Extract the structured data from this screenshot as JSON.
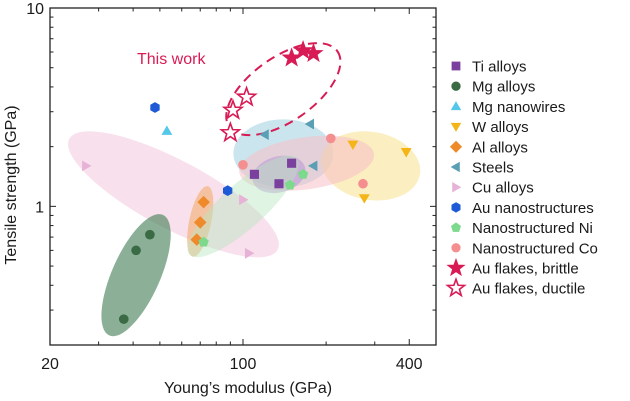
{
  "chart_data": {
    "type": "scatter",
    "x_scale": "log",
    "y_scale": "log",
    "xlabel": "Young’s modulus (GPa)",
    "ylabel": "Tensile strength (GPa)",
    "xlim": [
      20,
      500
    ],
    "ylim": [
      0.2,
      10
    ],
    "x_tick_labels": [
      {
        "value": 20,
        "label": "20"
      },
      {
        "value": 100,
        "label": "100"
      },
      {
        "value": 400,
        "label": "400"
      }
    ],
    "y_tick_labels": [
      {
        "value": 1,
        "label": "1"
      },
      {
        "value": 10,
        "label": "10"
      }
    ],
    "annotation": {
      "text": "This work",
      "color": "#d81b55"
    },
    "legend_position": "right",
    "series": [
      {
        "name": "Ti alloys",
        "marker": "square",
        "filled": true,
        "color": "#7b3f9e",
        "points": [
          [
            110,
            1.45
          ],
          [
            135,
            1.3
          ],
          [
            150,
            1.65
          ]
        ]
      },
      {
        "name": "Mg alloys",
        "marker": "circle",
        "filled": true,
        "color": "#3a6b45",
        "points": [
          [
            37,
            0.27
          ],
          [
            41,
            0.6
          ],
          [
            46,
            0.72
          ]
        ]
      },
      {
        "name": "Mg nanowires",
        "marker": "triangle-up",
        "filled": true,
        "color": "#55c8ea",
        "points": [
          [
            53,
            2.4
          ]
        ]
      },
      {
        "name": "W alloys",
        "marker": "triangle-down",
        "filled": true,
        "color": "#f3b517",
        "points": [
          [
            250,
            2.05
          ],
          [
            275,
            1.1
          ],
          [
            390,
            1.88
          ]
        ]
      },
      {
        "name": "Al alloys",
        "marker": "diamond",
        "filled": true,
        "color": "#ee8a2a",
        "points": [
          [
            68,
            0.68
          ],
          [
            70,
            0.83
          ],
          [
            72,
            1.05
          ]
        ]
      },
      {
        "name": "Steels",
        "marker": "triangle-left",
        "filled": true,
        "color": "#5a9fb4",
        "points": [
          [
            120,
            2.3
          ],
          [
            175,
            2.6
          ],
          [
            180,
            1.6
          ]
        ]
      },
      {
        "name": "Cu alloys",
        "marker": "triangle-right",
        "filled": true,
        "color": "#e6b3d6",
        "points": [
          [
            27,
            1.6
          ],
          [
            100,
            1.08
          ],
          [
            105,
            0.58
          ]
        ]
      },
      {
        "name": "Au nanostructures",
        "marker": "hexagon",
        "filled": true,
        "color": "#1f5ad6",
        "points": [
          [
            48,
            3.15
          ],
          [
            88,
            1.2
          ]
        ]
      },
      {
        "name": "Nanostructured Ni",
        "marker": "pentagon",
        "filled": true,
        "color": "#7dd98c",
        "points": [
          [
            72,
            0.66
          ],
          [
            148,
            1.28
          ],
          [
            165,
            1.45
          ]
        ]
      },
      {
        "name": "Nanostructured Co",
        "marker": "circle",
        "filled": true,
        "color": "#f58f8f",
        "points": [
          [
            100,
            1.62
          ],
          [
            208,
            2.2
          ],
          [
            272,
            1.3
          ]
        ]
      },
      {
        "name": "Au flakes, brittle",
        "marker": "star",
        "filled": true,
        "color": "#d81b55",
        "points": [
          [
            150,
            5.6
          ],
          [
            165,
            6.1
          ],
          [
            180,
            5.9
          ]
        ]
      },
      {
        "name": "Au flakes, ductile",
        "marker": "star",
        "filled": false,
        "color": "#d81b55",
        "points": [
          [
            90,
            2.35
          ],
          [
            92,
            3.05
          ],
          [
            103,
            3.55
          ]
        ]
      }
    ],
    "shaded_regions": [
      {
        "group": "Cu alloys",
        "color": "#f3c6dc",
        "opacity": 0.55
      },
      {
        "group": "Mg alloys",
        "color": "#3d7c52",
        "opacity": 0.6
      },
      {
        "group": "Al alloys",
        "color": "#f2b27a",
        "opacity": 0.65
      },
      {
        "group": "Steels",
        "color": "#9fd0e0",
        "opacity": 0.55
      },
      {
        "group": "W alloys",
        "color": "#f8e08c",
        "opacity": 0.55
      },
      {
        "group": "Nanostructured Co",
        "color": "#f7c0c6",
        "opacity": 0.55
      },
      {
        "group": "Ti alloys",
        "color": "#b890d8",
        "opacity": 0.5
      },
      {
        "group": "Nanostructured Ni",
        "color": "#b9e6c0",
        "opacity": 0.45
      }
    ]
  }
}
